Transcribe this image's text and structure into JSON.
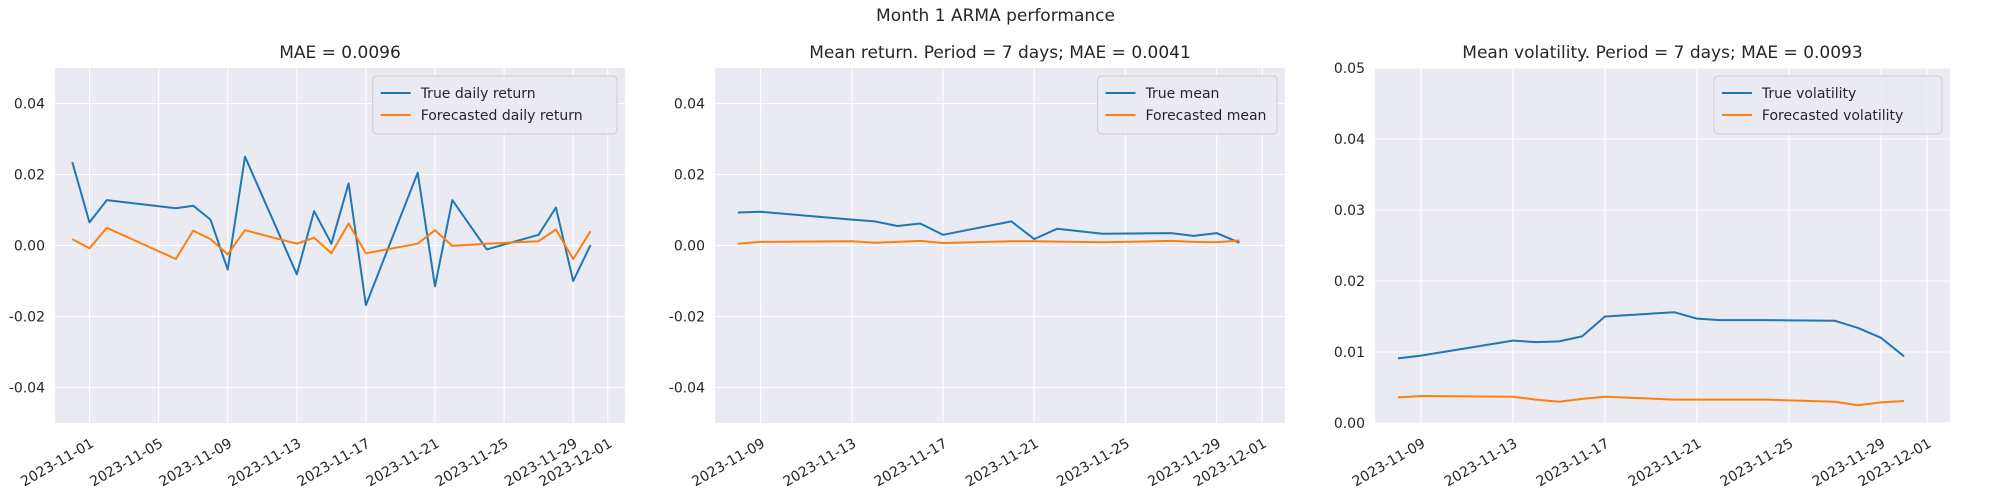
{
  "figure": {
    "suptitle": "Month 1 ARMA performance"
  },
  "chart_data": [
    {
      "type": "line",
      "title": "MAE = 0.0096",
      "xlabel": "",
      "ylabel": "",
      "x_ticks": [
        "2023-11-01",
        "2023-11-05",
        "2023-11-09",
        "2023-11-13",
        "2023-11-17",
        "2023-11-21",
        "2023-11-25",
        "2023-11-29",
        "2023-12-01"
      ],
      "y_ticks": [
        -0.04,
        -0.02,
        0.0,
        0.02,
        0.04
      ],
      "xlim": [
        "2023-10-30",
        "2023-12-02"
      ],
      "ylim": [
        -0.05,
        0.05
      ],
      "grid": true,
      "legend": "top-right",
      "series": [
        {
          "name": "True daily return",
          "color": "#1f77b4",
          "x": [
            "2023-10-31",
            "2023-11-01",
            "2023-11-02",
            "2023-11-06",
            "2023-11-07",
            "2023-11-08",
            "2023-11-09",
            "2023-11-10",
            "2023-11-13",
            "2023-11-14",
            "2023-11-15",
            "2023-11-16",
            "2023-11-17",
            "2023-11-20",
            "2023-11-21",
            "2023-11-22",
            "2023-11-24",
            "2023-11-27",
            "2023-11-28",
            "2023-11-29",
            "2023-11-30"
          ],
          "y": [
            0.0235,
            0.0065,
            0.0128,
            0.0105,
            0.0112,
            0.0073,
            -0.0068,
            0.025,
            -0.0081,
            0.0097,
            0.0005,
            0.0175,
            -0.0168,
            0.0205,
            -0.0115,
            0.0128,
            -0.0011,
            0.003,
            0.0107,
            -0.01,
            0.0001
          ]
        },
        {
          "name": "Forecasted daily return",
          "color": "#ff7f0e",
          "x": [
            "2023-10-31",
            "2023-11-01",
            "2023-11-02",
            "2023-11-06",
            "2023-11-07",
            "2023-11-08",
            "2023-11-09",
            "2023-11-10",
            "2023-11-13",
            "2023-11-14",
            "2023-11-15",
            "2023-11-16",
            "2023-11-17",
            "2023-11-20",
            "2023-11-21",
            "2023-11-22",
            "2023-11-24",
            "2023-11-27",
            "2023-11-28",
            "2023-11-29",
            "2023-11-30"
          ],
          "y": [
            0.0018,
            -0.0008,
            0.005,
            -0.0038,
            0.0042,
            0.0018,
            -0.0025,
            0.0043,
            0.0005,
            0.0022,
            -0.0022,
            0.0062,
            -0.0022,
            0.0005,
            0.0043,
            -0.0001,
            0.0005,
            0.0012,
            0.0045,
            -0.0038,
            0.004
          ]
        }
      ]
    },
    {
      "type": "line",
      "title": "Mean return. Period = 7 days; MAE = 0.0041",
      "xlabel": "",
      "ylabel": "",
      "x_ticks": [
        "2023-11-09",
        "2023-11-13",
        "2023-11-17",
        "2023-11-21",
        "2023-11-25",
        "2023-11-29",
        "2023-12-01"
      ],
      "y_ticks": [
        -0.04,
        -0.02,
        0.0,
        0.02,
        0.04
      ],
      "xlim": [
        "2023-11-07",
        "2023-12-02"
      ],
      "ylim": [
        -0.05,
        0.05
      ],
      "grid": true,
      "legend": "top-right",
      "series": [
        {
          "name": "True mean",
          "color": "#1f77b4",
          "x": [
            "2023-11-08",
            "2023-11-09",
            "2023-11-13",
            "2023-11-14",
            "2023-11-15",
            "2023-11-16",
            "2023-11-17",
            "2023-11-20",
            "2023-11-21",
            "2023-11-22",
            "2023-11-24",
            "2023-11-27",
            "2023-11-28",
            "2023-11-29",
            "2023-11-30"
          ],
          "y": [
            0.0093,
            0.0095,
            0.0073,
            0.0068,
            0.0055,
            0.0062,
            0.003,
            0.0068,
            0.0018,
            0.0047,
            0.0033,
            0.0035,
            0.0027,
            0.0035,
            0.0008
          ]
        },
        {
          "name": "Forecasted mean",
          "color": "#ff7f0e",
          "x": [
            "2023-11-08",
            "2023-11-09",
            "2023-11-13",
            "2023-11-14",
            "2023-11-15",
            "2023-11-16",
            "2023-11-17",
            "2023-11-20",
            "2023-11-21",
            "2023-11-22",
            "2023-11-24",
            "2023-11-27",
            "2023-11-28",
            "2023-11-29",
            "2023-11-30"
          ],
          "y": [
            0.0005,
            0.001,
            0.0012,
            0.0008,
            0.001,
            0.0013,
            0.0007,
            0.0012,
            0.0012,
            0.0011,
            0.0009,
            0.0013,
            0.001,
            0.0009,
            0.0014
          ]
        }
      ]
    },
    {
      "type": "line",
      "title": "Mean volatility. Period = 7 days; MAE = 0.0093",
      "xlabel": "",
      "ylabel": "",
      "x_ticks": [
        "2023-11-09",
        "2023-11-13",
        "2023-11-17",
        "2023-11-21",
        "2023-11-25",
        "2023-11-29",
        "2023-12-01"
      ],
      "y_ticks": [
        0.0,
        0.01,
        0.02,
        0.03,
        0.04,
        0.05
      ],
      "xlim": [
        "2023-11-07",
        "2023-12-02"
      ],
      "ylim": [
        0.0,
        0.05
      ],
      "grid": true,
      "legend": "top-right",
      "series": [
        {
          "name": "True volatility",
          "color": "#1f77b4",
          "x": [
            "2023-11-08",
            "2023-11-09",
            "2023-11-13",
            "2023-11-14",
            "2023-11-15",
            "2023-11-16",
            "2023-11-17",
            "2023-11-20",
            "2023-11-21",
            "2023-11-22",
            "2023-11-24",
            "2023-11-27",
            "2023-11-28",
            "2023-11-29",
            "2023-11-30"
          ],
          "y": [
            0.0091,
            0.0095,
            0.0116,
            0.0114,
            0.0115,
            0.0122,
            0.015,
            0.0156,
            0.0147,
            0.0145,
            0.0145,
            0.0144,
            0.0134,
            0.012,
            0.0094
          ]
        },
        {
          "name": "Forecasted volatility",
          "color": "#ff7f0e",
          "x": [
            "2023-11-08",
            "2023-11-09",
            "2023-11-13",
            "2023-11-14",
            "2023-11-15",
            "2023-11-16",
            "2023-11-17",
            "2023-11-20",
            "2023-11-21",
            "2023-11-22",
            "2023-11-24",
            "2023-11-27",
            "2023-11-28",
            "2023-11-29",
            "2023-11-30"
          ],
          "y": [
            0.0036,
            0.0038,
            0.0037,
            0.0033,
            0.003,
            0.0034,
            0.0037,
            0.0033,
            0.0033,
            0.0033,
            0.0033,
            0.003,
            0.0025,
            0.0029,
            0.0031
          ]
        }
      ]
    }
  ]
}
